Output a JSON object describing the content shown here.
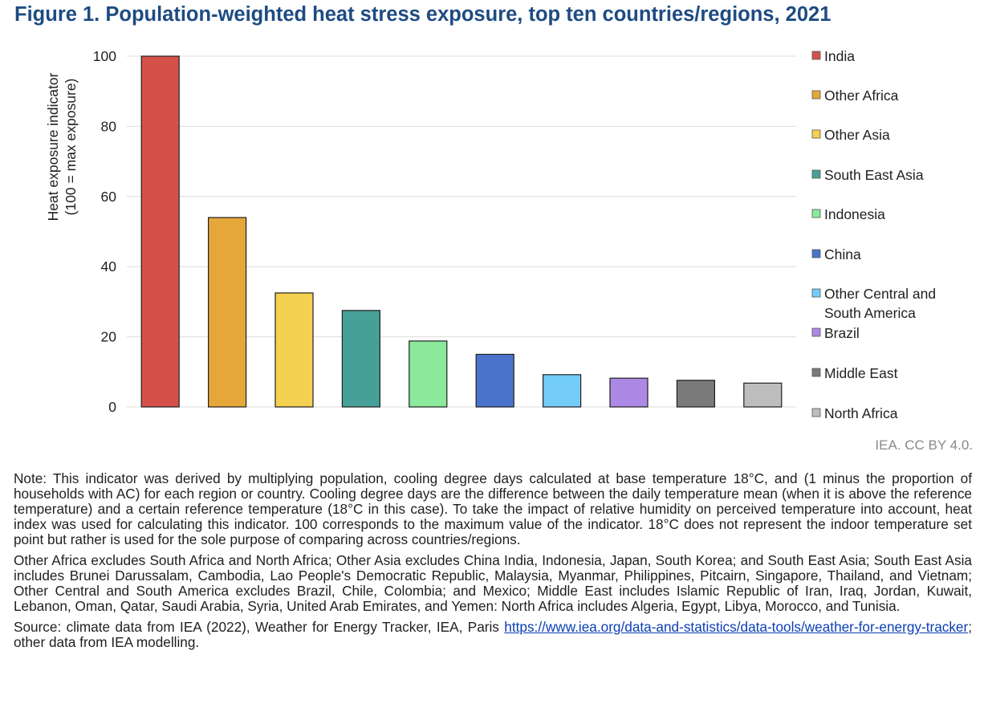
{
  "title": "Figure 1. Population-weighted heat stress exposure, top ten countries/regions, 2021",
  "credit": "IEA. CC BY 4.0.",
  "chart_data": {
    "type": "bar",
    "title": "Figure 1. Population-weighted heat stress exposure, top ten countries/regions, 2021",
    "ylabel_lines": [
      "Heat exposure indicator",
      "(100 = max exposure)"
    ],
    "ylim": [
      0,
      100
    ],
    "yticks": [
      "0",
      "20",
      "40",
      "60",
      "80",
      "100"
    ],
    "grid": true,
    "legend_position": "right",
    "categories": [
      "India",
      "Other Africa",
      "Other Asia",
      "South East Asia",
      "Indonesia",
      "China",
      "Other Central and South America",
      "Brazil",
      "Middle East",
      "North Africa"
    ],
    "legend_lines": [
      [
        "India"
      ],
      [
        "Other Africa"
      ],
      [
        "Other Asia"
      ],
      [
        "South East Asia"
      ],
      [
        "Indonesia"
      ],
      [
        "China"
      ],
      [
        "Other Central and",
        "South America"
      ],
      [
        "Brazil"
      ],
      [
        "Middle East"
      ],
      [
        "North Africa"
      ]
    ],
    "values": [
      100,
      54,
      32.5,
      27.5,
      18.8,
      15,
      9.2,
      8.2,
      7.6,
      6.8
    ],
    "colors": [
      "#d4514a",
      "#e5a73a",
      "#f4d150",
      "#47a097",
      "#8ae99b",
      "#4a74cc",
      "#74ccf8",
      "#ad89e6",
      "#7a7a7a",
      "#bdbdbd"
    ]
  },
  "notes": {
    "note": "Note: This indicator was derived by multiplying population, cooling degree days calculated at base temperature 18°C, and (1 minus the proportion of households with AC) for each region or country. Cooling degree days are the difference between the daily temperature mean (when it is above the reference temperature) and a certain reference temperature (18°C in this case). To take the impact of relative humidity on perceived temperature into account, heat index was used for calculating this indicator. 100 corresponds to the maximum value of the indicator. 18°C does not represent the indoor temperature set point but rather is used for the sole purpose of comparing across countries/regions.",
    "regions": "Other Africa excludes South Africa and North Africa; Other Asia excludes China India, Indonesia, Japan, South Korea; and South East Asia; South East Asia includes Brunei Darussalam, Cambodia, Lao People's Democratic Republic, Malaysia, Myanmar, Philippines, Pitcairn, Singapore, Thailand, and Vietnam; Other Central and South America excludes Brazil, Chile, Colombia; and Mexico; Middle East includes Islamic Republic of Iran, Iraq, Jordan, Kuwait, Lebanon, Oman, Qatar, Saudi Arabia, Syria, United Arab Emirates, and Yemen: North Africa includes Algeria, Egypt, Libya, Morocco, and Tunisia.",
    "source_prefix": "Source: climate data from IEA (2022), Weather for Energy Tracker, IEA, Paris ",
    "source_link": "https://www.iea.org/data-and-statistics/data-tools/weather-for-energy-tracker",
    "source_suffix": "; other data from IEA modelling."
  }
}
